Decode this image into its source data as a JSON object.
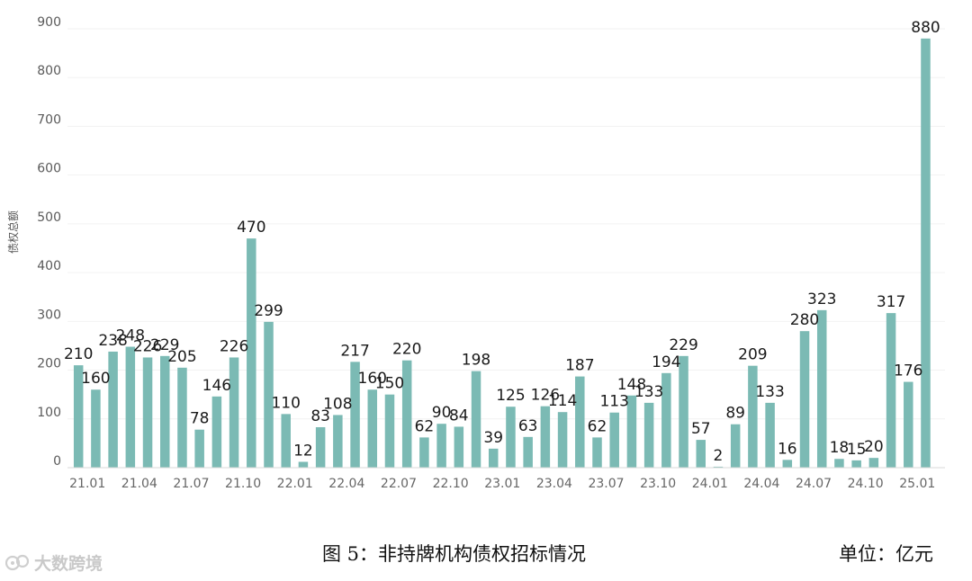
{
  "chart_data": {
    "type": "bar",
    "ylabel": "债权总额",
    "ylim": [
      0,
      900
    ],
    "yticks": [
      0,
      100,
      200,
      300,
      400,
      500,
      600,
      700,
      800,
      900
    ],
    "grid": true,
    "bar_color": "#7bbab4",
    "values": [
      210,
      160,
      238,
      248,
      226,
      229,
      205,
      78,
      146,
      226,
      470,
      299,
      110,
      12,
      83,
      108,
      217,
      160,
      150,
      220,
      62,
      90,
      84,
      198,
      39,
      125,
      63,
      126,
      114,
      187,
      62,
      113,
      148,
      133,
      194,
      229,
      57,
      2,
      89,
      209,
      133,
      16,
      280,
      323,
      18,
      15,
      20,
      317,
      176,
      880
    ],
    "xtick_labels": [
      {
        "index": 0,
        "label": "21.01"
      },
      {
        "index": 3,
        "label": "21.04"
      },
      {
        "index": 6,
        "label": "21.07"
      },
      {
        "index": 9,
        "label": "21.10"
      },
      {
        "index": 12,
        "label": "22.01"
      },
      {
        "index": 15,
        "label": "22.04"
      },
      {
        "index": 18,
        "label": "22.07"
      },
      {
        "index": 21,
        "label": "22.10"
      },
      {
        "index": 24,
        "label": "23.01"
      },
      {
        "index": 27,
        "label": "23.04"
      },
      {
        "index": 30,
        "label": "23.07"
      },
      {
        "index": 33,
        "label": "23.10"
      },
      {
        "index": 36,
        "label": "24.01"
      },
      {
        "index": 39,
        "label": "24.04"
      },
      {
        "index": 42,
        "label": "24.07"
      },
      {
        "index": 45,
        "label": "24.10"
      },
      {
        "index": 48,
        "label": "25.01"
      }
    ]
  },
  "caption": {
    "title": "图 5：非持牌机构债权招标情况",
    "unit": "单位：亿元"
  },
  "watermark": {
    "text": "大数跨境",
    "icon": "dashuju-logo-icon"
  }
}
